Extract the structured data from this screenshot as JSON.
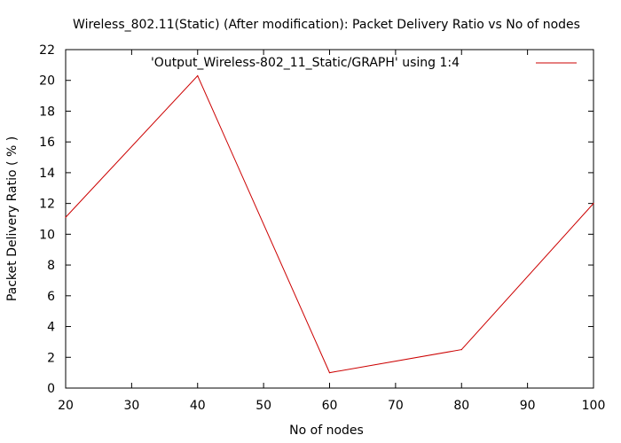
{
  "chart_data": {
    "type": "line",
    "title": "Wireless_802.11(Static) (After modification): Packet Delivery Ratio vs No of nodes",
    "xlabel": "No of nodes",
    "ylabel": "Packet Delivery Ratio ( % )",
    "xlim": [
      20,
      100
    ],
    "ylim": [
      0,
      22
    ],
    "xticks": [
      20,
      30,
      40,
      50,
      60,
      70,
      80,
      90,
      100
    ],
    "yticks": [
      0,
      2,
      4,
      6,
      8,
      10,
      12,
      14,
      16,
      18,
      20,
      22
    ],
    "grid": false,
    "legend": "top-right",
    "series": [
      {
        "name": "'Output_Wireless-802_11_Static/GRAPH' using 1:4",
        "color": "#cc0000",
        "x": [
          20,
          40,
          60,
          80,
          100
        ],
        "y": [
          11.1,
          20.3,
          1.0,
          2.5,
          12.0
        ]
      }
    ]
  }
}
